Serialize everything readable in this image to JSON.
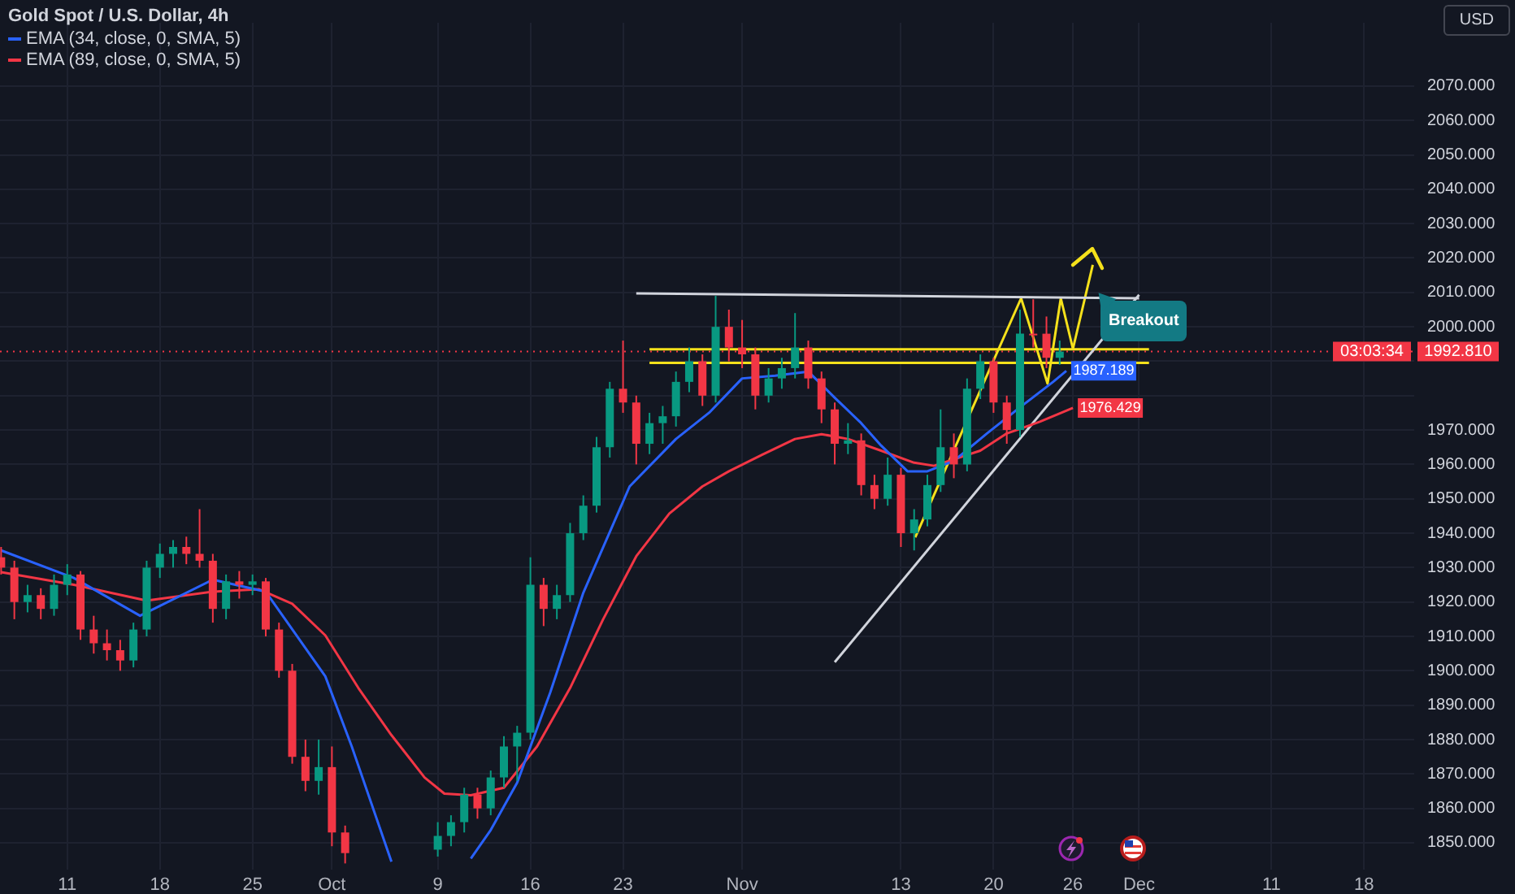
{
  "chart_data": {
    "type": "candlestick",
    "title": "Gold Spot / U.S. Dollar, 4h",
    "ylabel": "USD",
    "x": [
      "--09-06",
      "--09-07",
      "--09-08",
      "--09-09",
      "--09-10",
      "--09-11",
      "--09-12",
      "--09-13",
      "--09-14",
      "--09-15",
      "--09-16",
      "--09-17",
      "--09-18",
      "--09-19",
      "--09-20",
      "--09-21",
      "--09-22",
      "--09-23",
      "--09-24",
      "--09-25",
      "--09-26",
      "--09-27",
      "--09-28",
      "--09-29",
      "--09-30",
      "--10-01",
      "--10-02",
      "--10-09",
      "--10-10",
      "--10-11",
      "--10-12",
      "--10-13",
      "--10-14",
      "--10-15",
      "--10-16",
      "--10-17",
      "--10-18",
      "--10-19",
      "--10-20",
      "--10-21",
      "--10-22",
      "--10-23",
      "--10-24",
      "--10-25",
      "--10-26",
      "--10-27",
      "--10-28",
      "--10-29",
      "--10-30",
      "--10-31",
      "--11-01",
      "--11-02",
      "--11-03",
      "--11-04",
      "--11-05",
      "--11-06",
      "--11-07",
      "--11-08",
      "--11-09",
      "--11-10",
      "--11-11",
      "--11-12",
      "--11-13",
      "--11-14",
      "--11-15",
      "--11-16",
      "--11-17",
      "--11-18",
      "--11-19",
      "--11-20",
      "--11-21",
      "--11-22",
      "--11-23",
      "--11-24",
      "--11-25"
    ],
    "ohlc": [
      [
        1933,
        1936,
        1928,
        1930
      ],
      [
        1930,
        1932,
        1915,
        1920
      ],
      [
        1920,
        1925,
        1917,
        1922
      ],
      [
        1922,
        1924,
        1915,
        1918
      ],
      [
        1918,
        1928,
        1916,
        1925
      ],
      [
        1925,
        1931,
        1922,
        1928
      ],
      [
        1928,
        1929,
        1909,
        1912
      ],
      [
        1912,
        1916,
        1905,
        1908
      ],
      [
        1908,
        1912,
        1903,
        1906
      ],
      [
        1906,
        1909,
        1900,
        1903
      ],
      [
        1903,
        1914,
        1901,
        1912
      ],
      [
        1912,
        1932,
        1910,
        1930
      ],
      [
        1930,
        1937,
        1927,
        1934
      ],
      [
        1934,
        1938,
        1930,
        1936
      ],
      [
        1936,
        1939,
        1931,
        1934
      ],
      [
        1934,
        1947,
        1930,
        1932
      ],
      [
        1932,
        1934,
        1914,
        1918
      ],
      [
        1918,
        1928,
        1915,
        1926
      ],
      [
        1926,
        1929,
        1921,
        1925
      ],
      [
        1925,
        1928,
        1922,
        1926
      ],
      [
        1926,
        1927,
        1910,
        1912
      ],
      [
        1912,
        1914,
        1898,
        1900
      ],
      [
        1900,
        1902,
        1873,
        1875
      ],
      [
        1875,
        1880,
        1865,
        1868
      ],
      [
        1868,
        1880,
        1864,
        1872
      ],
      [
        1872,
        1878,
        1849,
        1853
      ],
      [
        1853,
        1855,
        1844,
        1847
      ],
      [
        1848,
        1856,
        1846,
        1852
      ],
      [
        1852,
        1858,
        1849,
        1856
      ],
      [
        1856,
        1866,
        1853,
        1864
      ],
      [
        1864,
        1866,
        1857,
        1860
      ],
      [
        1860,
        1871,
        1858,
        1869
      ],
      [
        1869,
        1881,
        1866,
        1878
      ],
      [
        1878,
        1884,
        1868,
        1882
      ],
      [
        1882,
        1933,
        1880,
        1925
      ],
      [
        1925,
        1927,
        1913,
        1918
      ],
      [
        1918,
        1925,
        1915,
        1922
      ],
      [
        1922,
        1943,
        1920,
        1940
      ],
      [
        1940,
        1951,
        1938,
        1948
      ],
      [
        1948,
        1968,
        1946,
        1965
      ],
      [
        1965,
        1984,
        1962,
        1982
      ],
      [
        1982,
        1996,
        1975,
        1978
      ],
      [
        1978,
        1980,
        1960,
        1966
      ],
      [
        1966,
        1975,
        1963,
        1972
      ],
      [
        1972,
        1977,
        1966,
        1974
      ],
      [
        1974,
        1987,
        1971,
        1984
      ],
      [
        1984,
        1994,
        1981,
        1990
      ],
      [
        1990,
        1992,
        1977,
        1980
      ],
      [
        1980,
        2009,
        1978,
        2000
      ],
      [
        2000,
        2005,
        1990,
        1994
      ],
      [
        1994,
        2002,
        1988,
        1992
      ],
      [
        1992,
        1994,
        1976,
        1980
      ],
      [
        1980,
        1988,
        1978,
        1985
      ],
      [
        1985,
        1991,
        1982,
        1988
      ],
      [
        1988,
        2004,
        1985,
        1994
      ],
      [
        1994,
        1996,
        1982,
        1985
      ],
      [
        1985,
        1987,
        1972,
        1976
      ],
      [
        1976,
        1978,
        1960,
        1966
      ],
      [
        1966,
        1972,
        1963,
        1967
      ],
      [
        1967,
        1969,
        1951,
        1954
      ],
      [
        1954,
        1957,
        1947,
        1950
      ],
      [
        1950,
        1962,
        1948,
        1957
      ],
      [
        1957,
        1959,
        1936,
        1940
      ],
      [
        1940,
        1947,
        1935,
        1944
      ],
      [
        1944,
        1957,
        1942,
        1954
      ],
      [
        1954,
        1976,
        1952,
        1965
      ],
      [
        1965,
        1969,
        1956,
        1960
      ],
      [
        1960,
        1985,
        1958,
        1982
      ],
      [
        1982,
        1992,
        1979,
        1990
      ],
      [
        1990,
        1991,
        1975,
        1978
      ],
      [
        1978,
        1980,
        1966,
        1970
      ],
      [
        1970,
        2005,
        1968,
        1998
      ],
      [
        1998,
        2008,
        1994,
        1998
      ],
      [
        1998,
        2003,
        1988,
        1991
      ],
      [
        1991,
        1996,
        1989,
        1992.81
      ]
    ],
    "colors": [
      "#f23645",
      "#f23645",
      "#089981",
      "#f23645",
      "#089981",
      "#089981",
      "#f23645",
      "#f23645",
      "#f23645",
      "#f23645",
      "#089981",
      "#089981",
      "#089981",
      "#089981",
      "#f23645",
      "#f23645",
      "#f23645",
      "#089981",
      "#f23645",
      "#089981",
      "#f23645",
      "#f23645",
      "#f23645",
      "#f23645",
      "#089981",
      "#f23645",
      "#f23645",
      "#089981",
      "#089981",
      "#089981",
      "#f23645",
      "#089981",
      "#089981",
      "#089981",
      "#089981",
      "#f23645",
      "#089981",
      "#089981",
      "#089981",
      "#089981",
      "#089981",
      "#f23645",
      "#f23645",
      "#089981",
      "#089981",
      "#089981",
      "#089981",
      "#f23645",
      "#089981",
      "#f23645",
      "#f23645",
      "#f23645",
      "#089981",
      "#089981",
      "#089981",
      "#f23645",
      "#f23645",
      "#f23645",
      "#089981",
      "#f23645",
      "#f23645",
      "#089981",
      "#f23645",
      "#089981",
      "#089981",
      "#089981",
      "#f23645",
      "#089981",
      "#089981",
      "#f23645",
      "#f23645",
      "#089981",
      "#f23645",
      "#f23645",
      "#089981"
    ],
    "series": [
      {
        "type": "line",
        "name": "EMA (34, close, 0, SMA, 5)",
        "color": "#2962ff",
        "x": [
          "--09-06",
          "--09-11T12:00",
          "--09-16T12:00",
          "--09-22",
          "--09-26",
          "--09-30T12:00",
          "--10-02T12:00",
          "--10-05T12:00",
          "--10-08",
          "--10-11T12:00",
          "--10-13",
          "--10-15",
          "--10-17T12:00",
          "--10-20",
          "--10-23T12:00",
          "--10-27",
          "--10-29T12:00",
          "--11-01",
          "--11-03T12:00",
          "--11-06",
          "--11-08",
          "--11-10",
          "--11-11T12:00",
          "--11-13T12:00",
          "--11-15",
          "--11-17",
          "--11-19T12:00",
          "--11-22",
          "--11-24T12:00",
          "--11-25T12:00"
        ],
        "values": [
          1935,
          1927,
          1916,
          1926.5,
          1923,
          1898.4,
          1878,
          1844.5,
          null,
          1845.4,
          1853.7,
          1867.5,
          1893.7,
          1922.7,
          1953.6,
          1967.4,
          1975,
          1985,
          1985.8,
          1987,
          1979.4,
          1972,
          1965.5,
          1958,
          1958,
          1961,
          1969,
          1976.6,
          1984,
          1987.189
        ],
        "value_labels": [
          null,
          null,
          null,
          null,
          null,
          null,
          null,
          null,
          null,
          null,
          null,
          null,
          null,
          null,
          null,
          null,
          null,
          null,
          null,
          null,
          null,
          null,
          null,
          null,
          null,
          null,
          null,
          null,
          null,
          "1987.189"
        ]
      },
      {
        "type": "line",
        "name": "EMA (89, close, 0, SMA, 5)",
        "color": "#f23645",
        "x": [
          "--09-06",
          "--09-11T12:00",
          "--09-17",
          "--09-22",
          "--09-25T12:00",
          "--09-28",
          "--09-30T12:00",
          "--10-03",
          "--10-05T12:00",
          "--10-08",
          "--10-09T12:00",
          "--10-11T12:00",
          "--10-14",
          "--10-16T12:00",
          "--10-19",
          "--10-21T12:00",
          "--10-24",
          "--10-26T12:00",
          "--10-29",
          "--10-31",
          "--11-02T12:00",
          "--11-05",
          "--11-07",
          "--11-09",
          "--11-11T12:00",
          "--11-14",
          "--11-15T12:00",
          "--11-19",
          "--11-21",
          "--11-23T12:00",
          "--11-26"
        ],
        "values": [
          1928.7,
          1925,
          1920.4,
          1923,
          1923.7,
          1919.5,
          1910.3,
          1895,
          1881.3,
          1869,
          1864.3,
          1863.8,
          1866,
          1878,
          1895,
          1915,
          1933.3,
          1945.7,
          1953.6,
          1958,
          1962.8,
          1967.4,
          1968.8,
          1967.4,
          1964,
          1960.5,
          1959.6,
          1964,
          1969,
          1972.4,
          1976.429
        ],
        "value_labels": [
          null,
          null,
          null,
          null,
          null,
          null,
          null,
          null,
          null,
          null,
          null,
          null,
          null,
          null,
          null,
          null,
          null,
          null,
          null,
          null,
          null,
          null,
          null,
          null,
          null,
          null,
          null,
          null,
          null,
          null,
          "1976.429"
        ]
      },
      {
        "type": "line",
        "color": "#d1d4dc",
        "x": [
          "--10-24",
          "--12-01"
        ],
        "values": [
          2009.7,
          2008.3
        ]
      },
      {
        "type": "line",
        "color": "#d1d4dc",
        "x": [
          "--11-08",
          "--12-01"
        ],
        "values": [
          1902.5,
          2009.3
        ]
      },
      {
        "type": "line",
        "color": "#f5e11b",
        "x": [
          "--10-25",
          "--12-01T18:00"
        ],
        "values": [
          1993.5,
          1993.5
        ]
      },
      {
        "type": "line",
        "color": "#f5e11b",
        "x": [
          "--10-25",
          "--12-01T18:00"
        ],
        "values": [
          1989.5,
          1989.5
        ]
      },
      {
        "type": "line",
        "color": "#f5e11b",
        "x": [
          "--11-14T02:00",
          "--11-22T02:00",
          "--11-24T02:00",
          "--11-25T02:00",
          "--11-26",
          "--11-27T12:00"
        ],
        "values": [
          1938.8,
          2008.3,
          1983.5,
          2008.3,
          1993.6,
          2018
        ]
      }
    ],
    "xlim": [
      "--09-05T22:00",
      "--12-21T19:00"
    ],
    "xticks": [
      {
        "value": "--09-11",
        "label": "11"
      },
      {
        "value": "--09-18",
        "label": "18"
      },
      {
        "value": "--09-25",
        "label": "25"
      },
      {
        "value": "--10-01",
        "label": "Oct"
      },
      {
        "value": "--10-09",
        "label": "9"
      },
      {
        "value": "--10-16",
        "label": "16"
      },
      {
        "value": "--10-23",
        "label": "23"
      },
      {
        "value": "--11-01",
        "label": "Nov"
      },
      {
        "value": "--11-13",
        "label": "13"
      },
      {
        "value": "--11-20",
        "label": "20"
      },
      {
        "value": "--11-26",
        "label": "26"
      },
      {
        "value": "--12-01",
        "label": "Dec"
      },
      {
        "value": "--12-11",
        "label": "11"
      },
      {
        "value": "--12-18",
        "label": "18"
      }
    ],
    "ylim": [
      1842.2,
      2088.4
    ],
    "yticks": [
      {
        "value": 1850,
        "label": "1850.000"
      },
      {
        "value": 1860,
        "label": "1860.000"
      },
      {
        "value": 1870,
        "label": "1870.000"
      },
      {
        "value": 1880,
        "label": "1880.000"
      },
      {
        "value": 1890,
        "label": "1890.000"
      },
      {
        "value": 1900,
        "label": "1900.000"
      },
      {
        "value": 1910,
        "label": "1910.000"
      },
      {
        "value": 1920,
        "label": "1920.000"
      },
      {
        "value": 1930,
        "label": "1930.000"
      },
      {
        "value": 1940,
        "label": "1940.000"
      },
      {
        "value": 1950,
        "label": "1950.000"
      },
      {
        "value": 1960,
        "label": "1960.000"
      },
      {
        "value": 1970,
        "label": "1970.000"
      },
      {
        "value": 1980,
        "label": null
      },
      {
        "value": 1990,
        "label": null
      },
      {
        "value": 2000,
        "label": "2000.000"
      },
      {
        "value": 2010,
        "label": "2010.000"
      },
      {
        "value": 2020,
        "label": "2020.000"
      },
      {
        "value": 2030,
        "label": "2030.000"
      },
      {
        "value": 2040,
        "label": "2040.000"
      },
      {
        "value": 2050,
        "label": "2050.000"
      },
      {
        "value": 2060,
        "label": "2060.000"
      },
      {
        "value": 2070,
        "label": "2070.000"
      }
    ],
    "ref_lines": [
      {
        "axis": "y",
        "value": 1992.81,
        "label": "1992.810",
        "color": "#f23645",
        "line_style": "dotted"
      }
    ],
    "annotations": [
      "03:03:34",
      "Breakout"
    ],
    "grid": true,
    "legend": "top left"
  }
}
